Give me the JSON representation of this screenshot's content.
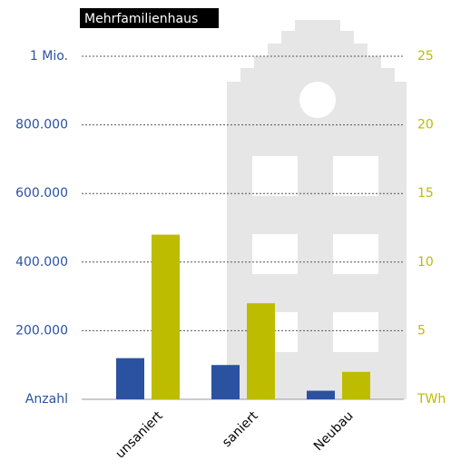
{
  "chart_data": {
    "type": "bar",
    "title": "Mehrfamilienhaus",
    "categories": [
      "unsaniert",
      "saniert",
      "Neubau"
    ],
    "series": [
      {
        "color": "#2b52a1",
        "values": [
          120000,
          100000,
          25000
        ]
      },
      {
        "color": "#bdbc00",
        "values": [
          12,
          7,
          2
        ],
        "axis": "y2"
      }
    ],
    "ylim": [
      0,
      1000000
    ],
    "yticks": [
      {
        "value": 0,
        "label": "Anzahl"
      },
      {
        "value": 200000,
        "label": "200.000"
      },
      {
        "value": 400000,
        "label": "400.000"
      },
      {
        "value": 600000,
        "label": "600.000"
      },
      {
        "value": 800000,
        "label": "800.000"
      },
      {
        "value": 1000000,
        "label": "1 Mio."
      }
    ],
    "y2lim": [
      0,
      25
    ],
    "y2ticks": [
      {
        "value": 0,
        "label": "TWh"
      },
      5,
      10,
      15,
      20,
      25
    ],
    "grid": true
  }
}
